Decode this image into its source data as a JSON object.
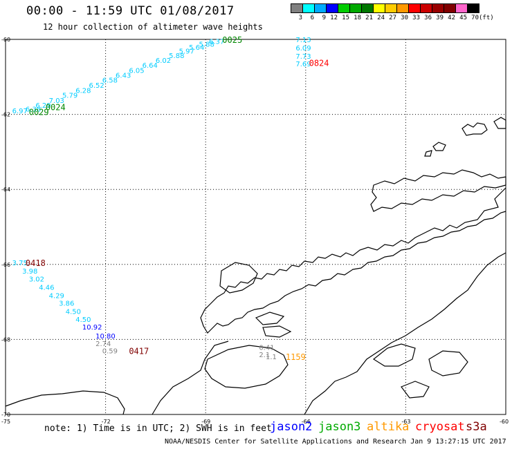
{
  "title": "00:00 - 11:59 UTC 01/08/2017",
  "subtitle": "12 hour collection of altimeter wave heights",
  "legend": {
    "labels": [
      "3",
      "6",
      "9",
      "12",
      "15",
      "18",
      "21",
      "24",
      "27",
      "30",
      "33",
      "36",
      "39",
      "42",
      "45",
      "70",
      "(ft)"
    ],
    "colors": [
      "#808080",
      "#00ffff",
      "#00aaff",
      "#0000ff",
      "#00cc00",
      "#00aa00",
      "#007700",
      "#ffff00",
      "#ffcc00",
      "#ff9900",
      "#ff0000",
      "#cc0000",
      "#990000",
      "#800000",
      "#ff66cc",
      "#000000"
    ]
  },
  "axes": {
    "lat_labels": [
      "-60",
      "-62",
      "-64",
      "-66",
      "-68",
      "-70"
    ],
    "lon_labels": [
      "-75",
      "-72",
      "-69",
      "-66",
      "-63",
      "-60"
    ]
  },
  "tracks": [
    {
      "color": "#00ccff",
      "points": [
        {
          "lon": -74.8,
          "lat": -61.9,
          "v": "6.97"
        },
        {
          "lon": -74.4,
          "lat": -61.85,
          "v": "6.38"
        },
        {
          "lon": -74.1,
          "lat": -61.75,
          "v": "6.29"
        },
        {
          "lon": -73.7,
          "lat": -61.62,
          "v": "7.03"
        },
        {
          "lon": -73.3,
          "lat": -61.48,
          "v": "5.79"
        },
        {
          "lon": -72.9,
          "lat": -61.35,
          "v": "6.28"
        },
        {
          "lon": -72.5,
          "lat": -61.22,
          "v": "6.52"
        },
        {
          "lon": -72.1,
          "lat": -61.08,
          "v": "6.58"
        },
        {
          "lon": -71.7,
          "lat": -60.95,
          "v": "6.43"
        },
        {
          "lon": -71.3,
          "lat": -60.82,
          "v": "6.05"
        },
        {
          "lon": -70.9,
          "lat": -60.68,
          "v": "6.64"
        },
        {
          "lon": -70.5,
          "lat": -60.55,
          "v": "6.02"
        },
        {
          "lon": -70.1,
          "lat": -60.42,
          "v": "5.88"
        },
        {
          "lon": -69.8,
          "lat": -60.3,
          "v": "5.97"
        },
        {
          "lon": -69.5,
          "lat": -60.2,
          "v": "5.64"
        },
        {
          "lon": -69.2,
          "lat": -60.12,
          "v": "5.88"
        },
        {
          "lon": -68.9,
          "lat": -60.05,
          "v": "6.37"
        }
      ]
    },
    {
      "color": "#00ccff",
      "points": [
        {
          "lon": -66.3,
          "lat": -60.0,
          "v": "7.13"
        },
        {
          "lon": -66.3,
          "lat": -60.22,
          "v": "6.09"
        },
        {
          "lon": -66.3,
          "lat": -60.44,
          "v": "7.73"
        },
        {
          "lon": -66.3,
          "lat": -60.64,
          "v": "7.69"
        }
      ]
    },
    {
      "color": "#00ccff",
      "points": [
        {
          "lon": -74.8,
          "lat": -65.95,
          "v": "3.75"
        },
        {
          "lon": -74.5,
          "lat": -66.17,
          "v": "3.98"
        },
        {
          "lon": -74.3,
          "lat": -66.38,
          "v": "3.02"
        },
        {
          "lon": -74.0,
          "lat": -66.6,
          "v": "4.46"
        },
        {
          "lon": -73.7,
          "lat": -66.82,
          "v": "4.29"
        },
        {
          "lon": -73.4,
          "lat": -67.03,
          "v": "3.86"
        },
        {
          "lon": -73.2,
          "lat": -67.25,
          "v": "4.50"
        },
        {
          "lon": -72.9,
          "lat": -67.46,
          "v": "4.50"
        }
      ]
    },
    {
      "color": "#0000ff",
      "points": [
        {
          "lon": -72.7,
          "lat": -67.66,
          "v": "10.92"
        },
        {
          "lon": -72.3,
          "lat": -67.9,
          "v": "10.80"
        }
      ]
    },
    {
      "color": "#808080",
      "points": [
        {
          "lon": -72.3,
          "lat": -68.1,
          "v": "2.74"
        },
        {
          "lon": -72.1,
          "lat": -68.3,
          "v": "0.59"
        },
        {
          "lon": -67.4,
          "lat": -68.2,
          "v": "0.41"
        },
        {
          "lon": -67.4,
          "lat": -68.4,
          "v": "2.1"
        },
        {
          "lon": -67.2,
          "lat": -68.45,
          "v": "1.1"
        }
      ]
    }
  ],
  "times": [
    {
      "lon": -68.5,
      "lat": -60.0,
      "v": "0025",
      "color": "#008800"
    },
    {
      "lon": -74.3,
      "lat": -61.92,
      "v": "0029",
      "color": "#008800"
    },
    {
      "lon": -73.8,
      "lat": -61.8,
      "v": "0024",
      "color": "#008800"
    },
    {
      "lon": -65.9,
      "lat": -60.62,
      "v": "0824",
      "color": "#ff0000"
    },
    {
      "lon": -74.4,
      "lat": -65.95,
      "v": "0418",
      "color": "#800000"
    },
    {
      "lon": -71.3,
      "lat": -68.3,
      "v": "0417",
      "color": "#800000"
    },
    {
      "lon": -66.6,
      "lat": -68.45,
      "v": "1159",
      "color": "#ff9900"
    }
  ],
  "note": "note: 1) Time is in UTC; 2) SWH is in feet",
  "credit": "NOAA/NESDIS Center for Satellite Applications and Research   Jan  9 13:27:15 UTC 2017",
  "satellites": [
    {
      "name": "jason2",
      "color": "#0000ff"
    },
    {
      "name": "jason3",
      "color": "#00aa00"
    },
    {
      "name": "altika",
      "color": "#ff9900"
    },
    {
      "name": "cryosat",
      "color": "#ff0000"
    },
    {
      "name": "s3a",
      "color": "#800000"
    }
  ]
}
